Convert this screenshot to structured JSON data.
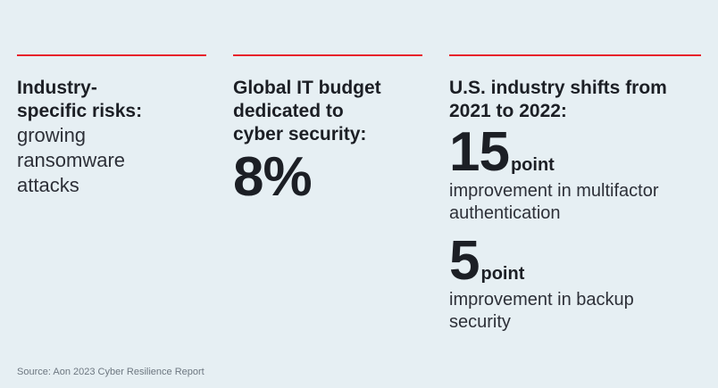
{
  "columns": [
    {
      "heading_lines": [
        "Industry-",
        "specific risks:"
      ],
      "body_lines": [
        "growing",
        "ransomware",
        "attacks"
      ]
    },
    {
      "heading_lines": [
        "Global IT budget",
        "dedicated to",
        "cyber security:"
      ],
      "value": "8%"
    },
    {
      "heading_lines": [
        "U.S. industry shifts from",
        "2021 to 2022:"
      ],
      "stats": [
        {
          "number": "15",
          "unit": "point",
          "desc_lines": [
            "improvement in multifactor",
            "authentication"
          ]
        },
        {
          "number": "5",
          "unit": "point",
          "desc_lines": [
            "improvement in backup",
            "security"
          ]
        }
      ]
    }
  ],
  "source": "Source: Aon 2023 Cyber Resilience Report",
  "colors": {
    "background": "#e6eff3",
    "accent": "#e8232b",
    "text": "#1c1f25"
  }
}
